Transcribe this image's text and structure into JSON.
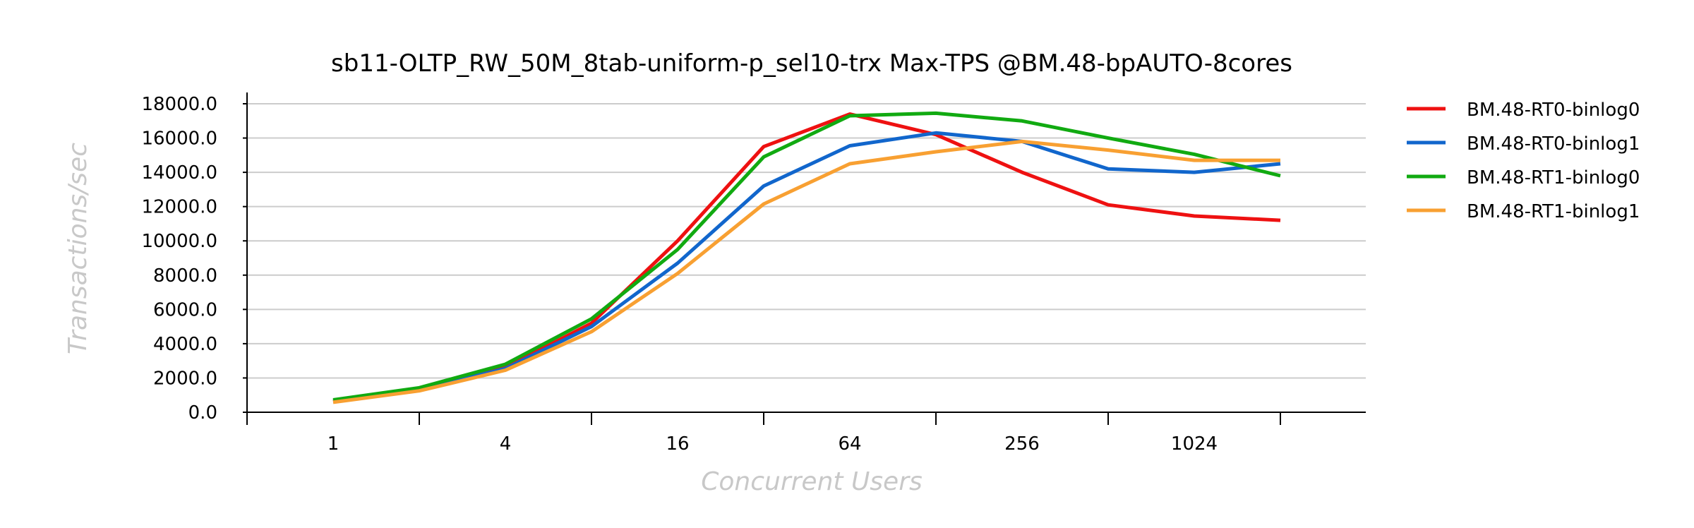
{
  "chart_data": {
    "type": "line",
    "title": "sb11-OLTP_RW_50M_8tab-uniform-p_sel10-trx Max-TPS @BM.48-bpAUTO-8cores",
    "xlabel": "Concurrent Users",
    "ylabel": "Transactions/sec",
    "x": [
      1,
      2,
      4,
      8,
      16,
      32,
      64,
      128,
      256,
      512,
      1024,
      2048
    ],
    "xscale": "log2",
    "x_tick_labels": [
      "1",
      "4",
      "16",
      "64",
      "256",
      "1024"
    ],
    "x_tick_values": [
      1,
      4,
      16,
      64,
      256,
      1024
    ],
    "ylim": [
      0,
      18000
    ],
    "y_tick_labels": [
      "0.0",
      "2000.0",
      "4000.0",
      "6000.0",
      "8000.0",
      "10000.0",
      "12000.0",
      "14000.0",
      "16000.0",
      "18000.0"
    ],
    "grid": true,
    "legend_position": "right",
    "series": [
      {
        "name": "BM.48-RT0-binlog0",
        "color": "#ee1111",
        "values": [
          650,
          1350,
          2600,
          5200,
          10000,
          15500,
          17400,
          16200,
          14000,
          12100,
          11450,
          11200
        ]
      },
      {
        "name": "BM.48-RT0-binlog1",
        "color": "#1166cc",
        "values": [
          620,
          1300,
          2550,
          5000,
          8700,
          13200,
          15550,
          16300,
          15800,
          14200,
          14000,
          14500
        ]
      },
      {
        "name": "BM.48-RT1-binlog0",
        "color": "#11aa11",
        "values": [
          720,
          1430,
          2800,
          5450,
          9500,
          14900,
          17300,
          17450,
          17000,
          16000,
          15050,
          13800
        ]
      },
      {
        "name": "BM.48-RT1-binlog1",
        "color": "#f8a032",
        "values": [
          580,
          1250,
          2450,
          4700,
          8100,
          12150,
          14500,
          15200,
          15800,
          15300,
          14700,
          14700
        ]
      }
    ]
  }
}
